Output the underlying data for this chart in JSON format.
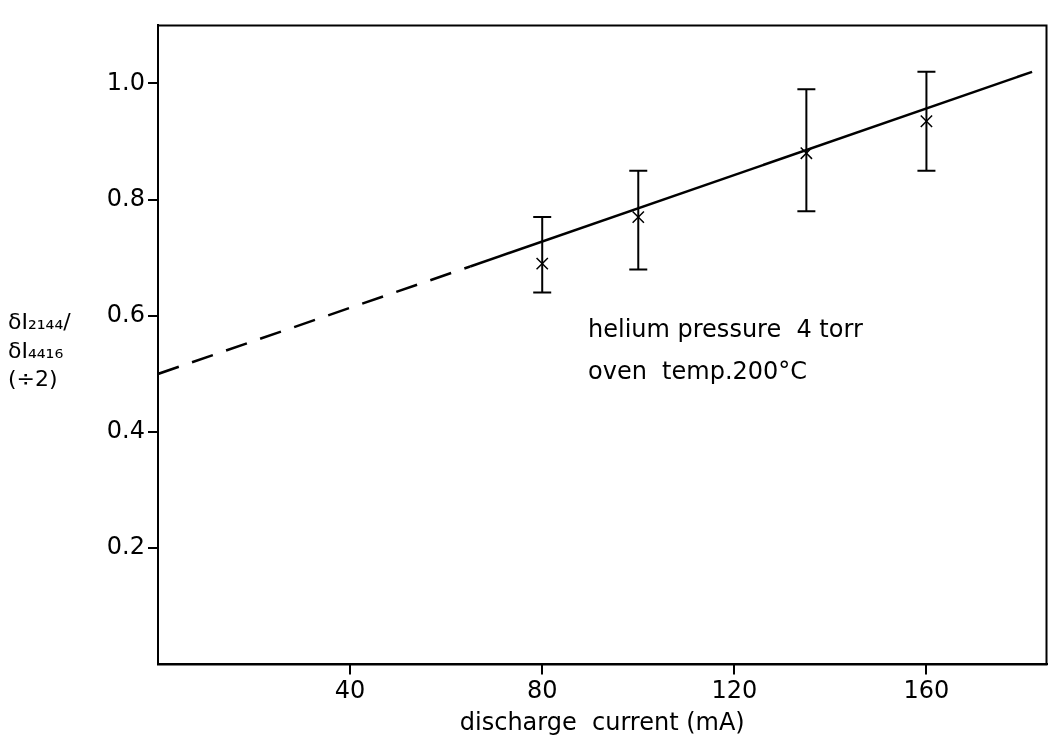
{
  "chart_data": {
    "type": "scatter",
    "xlabel": "discharge  current (mA)",
    "ylabel": "δI₂₁₄₄/δI₄₄₁₆ (÷2)",
    "xlim": [
      0,
      185
    ],
    "xticks": [
      40,
      80,
      120,
      160
    ],
    "ylim": [
      0,
      1.1
    ],
    "yticks": [
      {
        "value": 0.2,
        "label": "0.2"
      },
      {
        "value": 0.4,
        "label": "0.4"
      },
      {
        "value": 0.6,
        "label": "0.6"
      },
      {
        "value": 0.8,
        "label": "0.8"
      },
      {
        "value": 1.0,
        "label": "1.0"
      }
    ],
    "grid": false,
    "legend": false,
    "series": [
      {
        "type": "scatter",
        "color": "#000000",
        "marker": "cross",
        "x": [
          80,
          100,
          135,
          160
        ],
        "values": [
          0.69,
          0.77,
          0.88,
          0.935
        ],
        "errors": [
          [
            0.64,
            0.77
          ],
          [
            0.68,
            0.85
          ],
          [
            0.78,
            0.99
          ],
          [
            0.85,
            1.02
          ]
        ]
      },
      {
        "type": "line",
        "color": "#000000",
        "marker": "none",
        "line_style": "dashed",
        "x": [
          0,
          65
        ],
        "values": [
          0.5,
          0.685
        ]
      },
      {
        "type": "line",
        "color": "#000000",
        "marker": "none",
        "line_style": "solid",
        "x": [
          65,
          182
        ],
        "values": [
          0.685,
          1.02
        ]
      }
    ],
    "annotations": [
      "helium pressure  4 torr",
      "oven  temp.200°C"
    ]
  }
}
